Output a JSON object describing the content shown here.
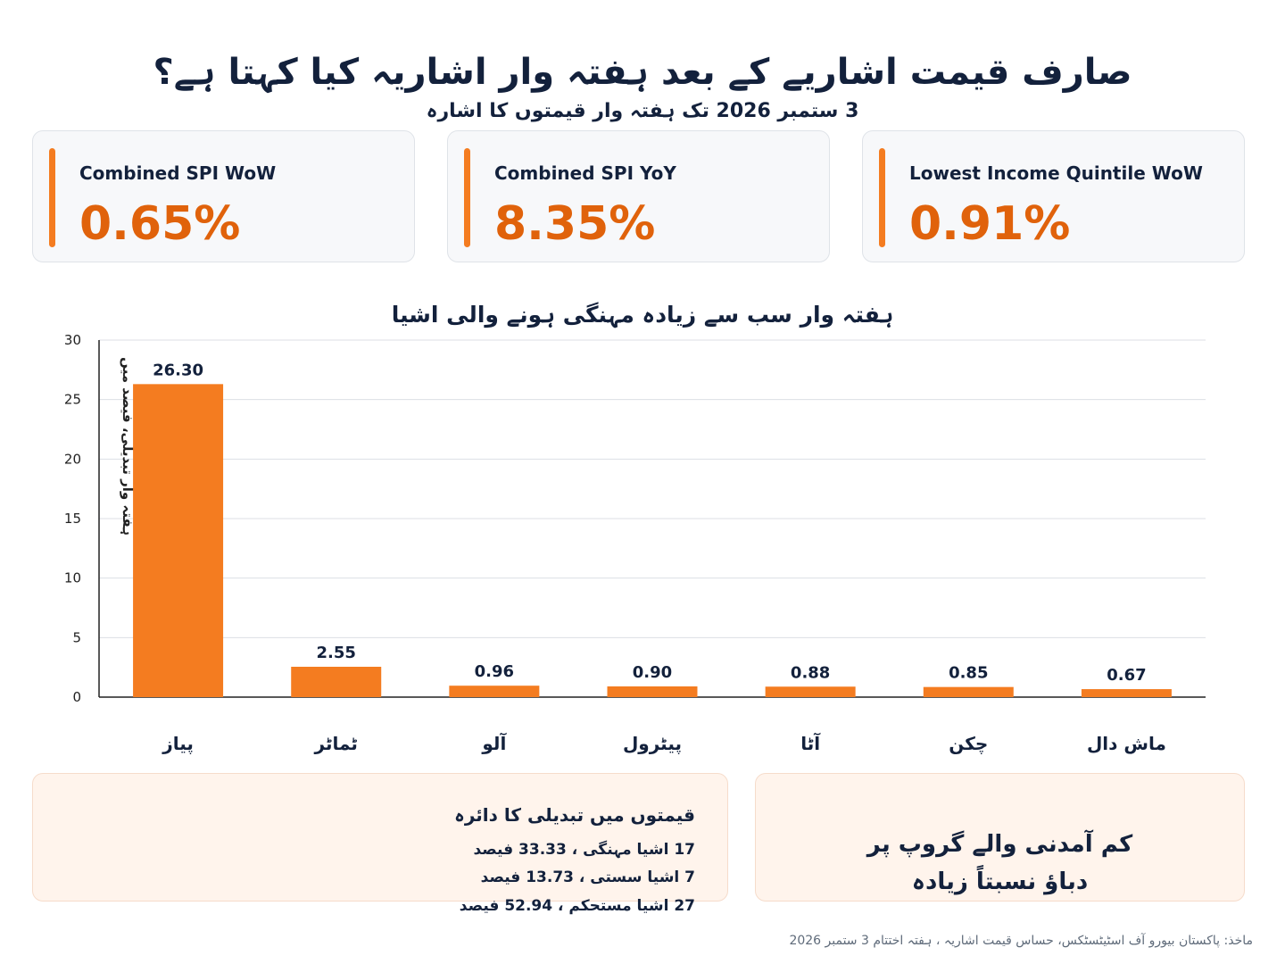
{
  "header": {
    "title": "صارف قیمت اشاریے کے بعد ہفتہ وار اشاریہ کیا کہتا ہے؟",
    "subtitle": "3 ستمبر 2026 تک ہفتہ وار قیمتوں کا اشارہ"
  },
  "kpis": [
    {
      "label": "Combined SPI WoW",
      "value": "0.65%"
    },
    {
      "label": "Combined SPI YoY",
      "value": "8.35%"
    },
    {
      "label": "Lowest Income Quintile WoW",
      "value": "0.91%"
    }
  ],
  "chart_data": {
    "type": "bar",
    "title": "ہفتہ وار سب سے زیادہ مہنگی ہونے والی اشیا",
    "ylabel": "ہفتہ وار تبدیلی، فیصد میں",
    "categories": [
      "پیاز",
      "ٹماٹر",
      "آلو",
      "پیٹرول",
      "آٹا",
      "چکن",
      "ماش دال"
    ],
    "values": [
      26.3,
      2.55,
      0.96,
      0.9,
      0.88,
      0.85,
      0.67
    ],
    "value_labels": [
      "26.30",
      "2.55",
      "0.96",
      "0.90",
      "0.88",
      "0.85",
      "0.67"
    ],
    "ylim": [
      0,
      30
    ],
    "yticks": [
      0,
      5,
      10,
      15,
      20,
      25,
      30
    ],
    "grid": true,
    "legend": "none",
    "bar_color": "#f47c20"
  },
  "range_panel": {
    "title": "قیمتوں میں تبدیلی کا دائرہ",
    "lines": [
      "17 اشیا مہنگی ، 33.33 فیصد",
      "7 اشیا سستی ، 13.73 فیصد",
      "27 اشیا مستحکم ، 52.94 فیصد"
    ]
  },
  "pressure_panel": {
    "line1": "کم آمدنی والے گروپ پر",
    "line2": "دباؤ نسبتاً زیادہ"
  },
  "source": "ماخذ: پاکستان بیورو آف اسٹیٹسٹکس، حساس قیمت اشاریہ ، ہفتہ اختتام 3 ستمبر 2026",
  "colors": {
    "accent": "#f47c20",
    "kpi_value": "#e0620b",
    "text": "#13213c",
    "panel_bg": "#fff4ec"
  }
}
